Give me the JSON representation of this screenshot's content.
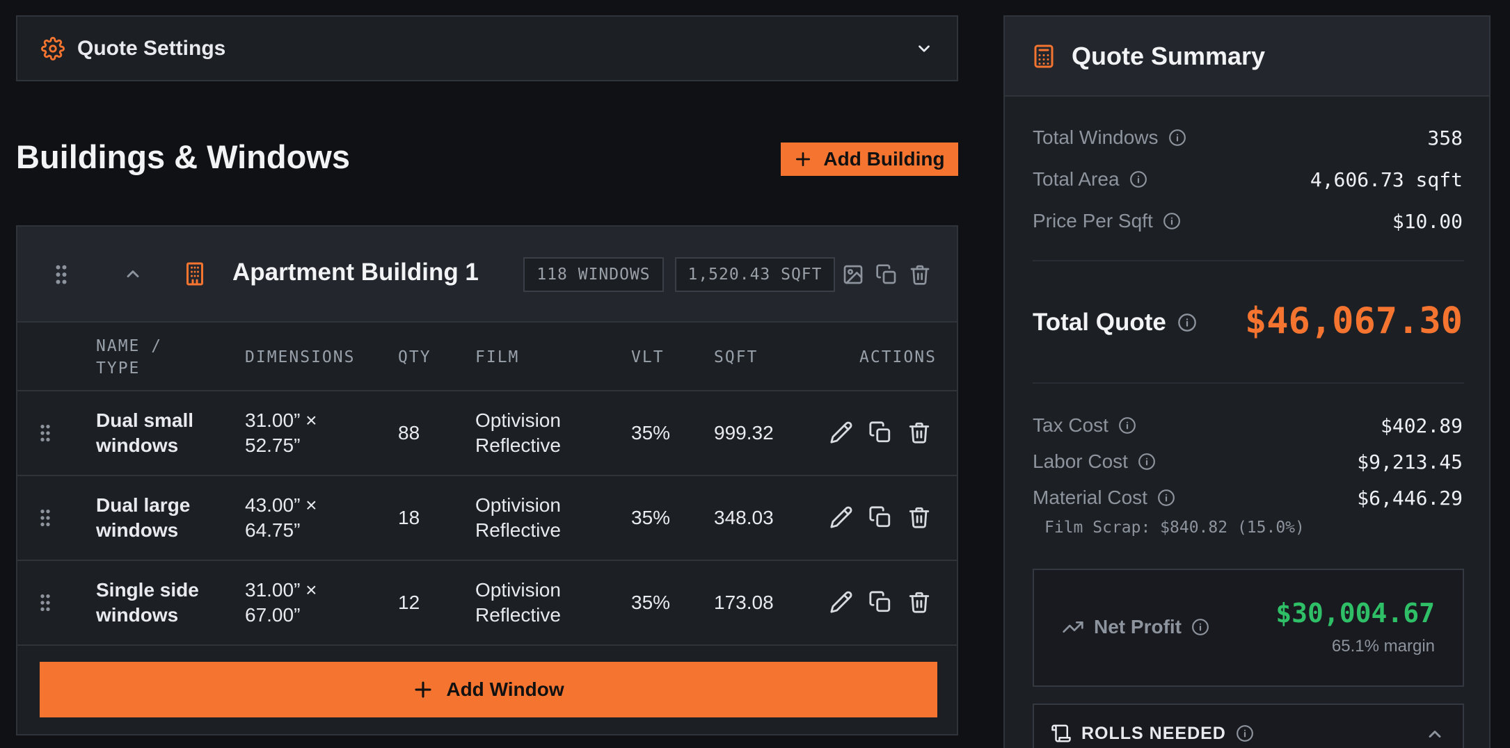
{
  "colors": {
    "accent": "#f47430",
    "profit": "#2fbf67",
    "background": "#0f1114",
    "panel": "#1c1f24"
  },
  "settings": {
    "title": "Quote Settings",
    "icon": "gear-icon",
    "toggle_icon": "chevron-down-icon"
  },
  "buildings_section": {
    "title": "Buildings & Windows",
    "add_building_label": "Add Building"
  },
  "building": {
    "name": "Apartment Building 1",
    "windows_chip": "118 WINDOWS",
    "sqft_chip": "1,520.43 SQFT",
    "columns": [
      "NAME / TYPE",
      "DIMENSIONS",
      "QTY",
      "FILM",
      "VLT",
      "SQFT",
      "ACTIONS"
    ],
    "rows": [
      {
        "name": "Dual small windows",
        "dimensions": "31.00” × 52.75”",
        "qty": "88",
        "film": "Optivision Reflective",
        "vlt": "35%",
        "sqft": "999.32"
      },
      {
        "name": "Dual large windows",
        "dimensions": "43.00” × 64.75”",
        "qty": "18",
        "film": "Optivision Reflective",
        "vlt": "35%",
        "sqft": "348.03"
      },
      {
        "name": "Single side windows",
        "dimensions": "31.00” × 67.00”",
        "qty": "12",
        "film": "Optivision Reflective",
        "vlt": "35%",
        "sqft": "173.08"
      }
    ],
    "add_window_label": "Add Window"
  },
  "summary": {
    "title": "Quote Summary",
    "total_windows_label": "Total Windows",
    "total_windows": "358",
    "total_area_label": "Total Area",
    "total_area": "4,606.73 sqft",
    "price_per_sqft_label": "Price Per Sqft",
    "price_per_sqft": "$10.00",
    "total_quote_label": "Total Quote",
    "total_quote": "$46,067.30",
    "tax_cost_label": "Tax Cost",
    "tax_cost": "$402.89",
    "labor_cost_label": "Labor Cost",
    "labor_cost": "$9,213.45",
    "material_cost_label": "Material Cost",
    "material_cost": "$6,446.29",
    "film_scrap": "Film Scrap: $840.82 (15.0%)",
    "net_profit_label": "Net Profit",
    "net_profit": "$30,004.67",
    "margin": "65.1% margin",
    "rolls_label": "ROLLS NEEDED"
  }
}
